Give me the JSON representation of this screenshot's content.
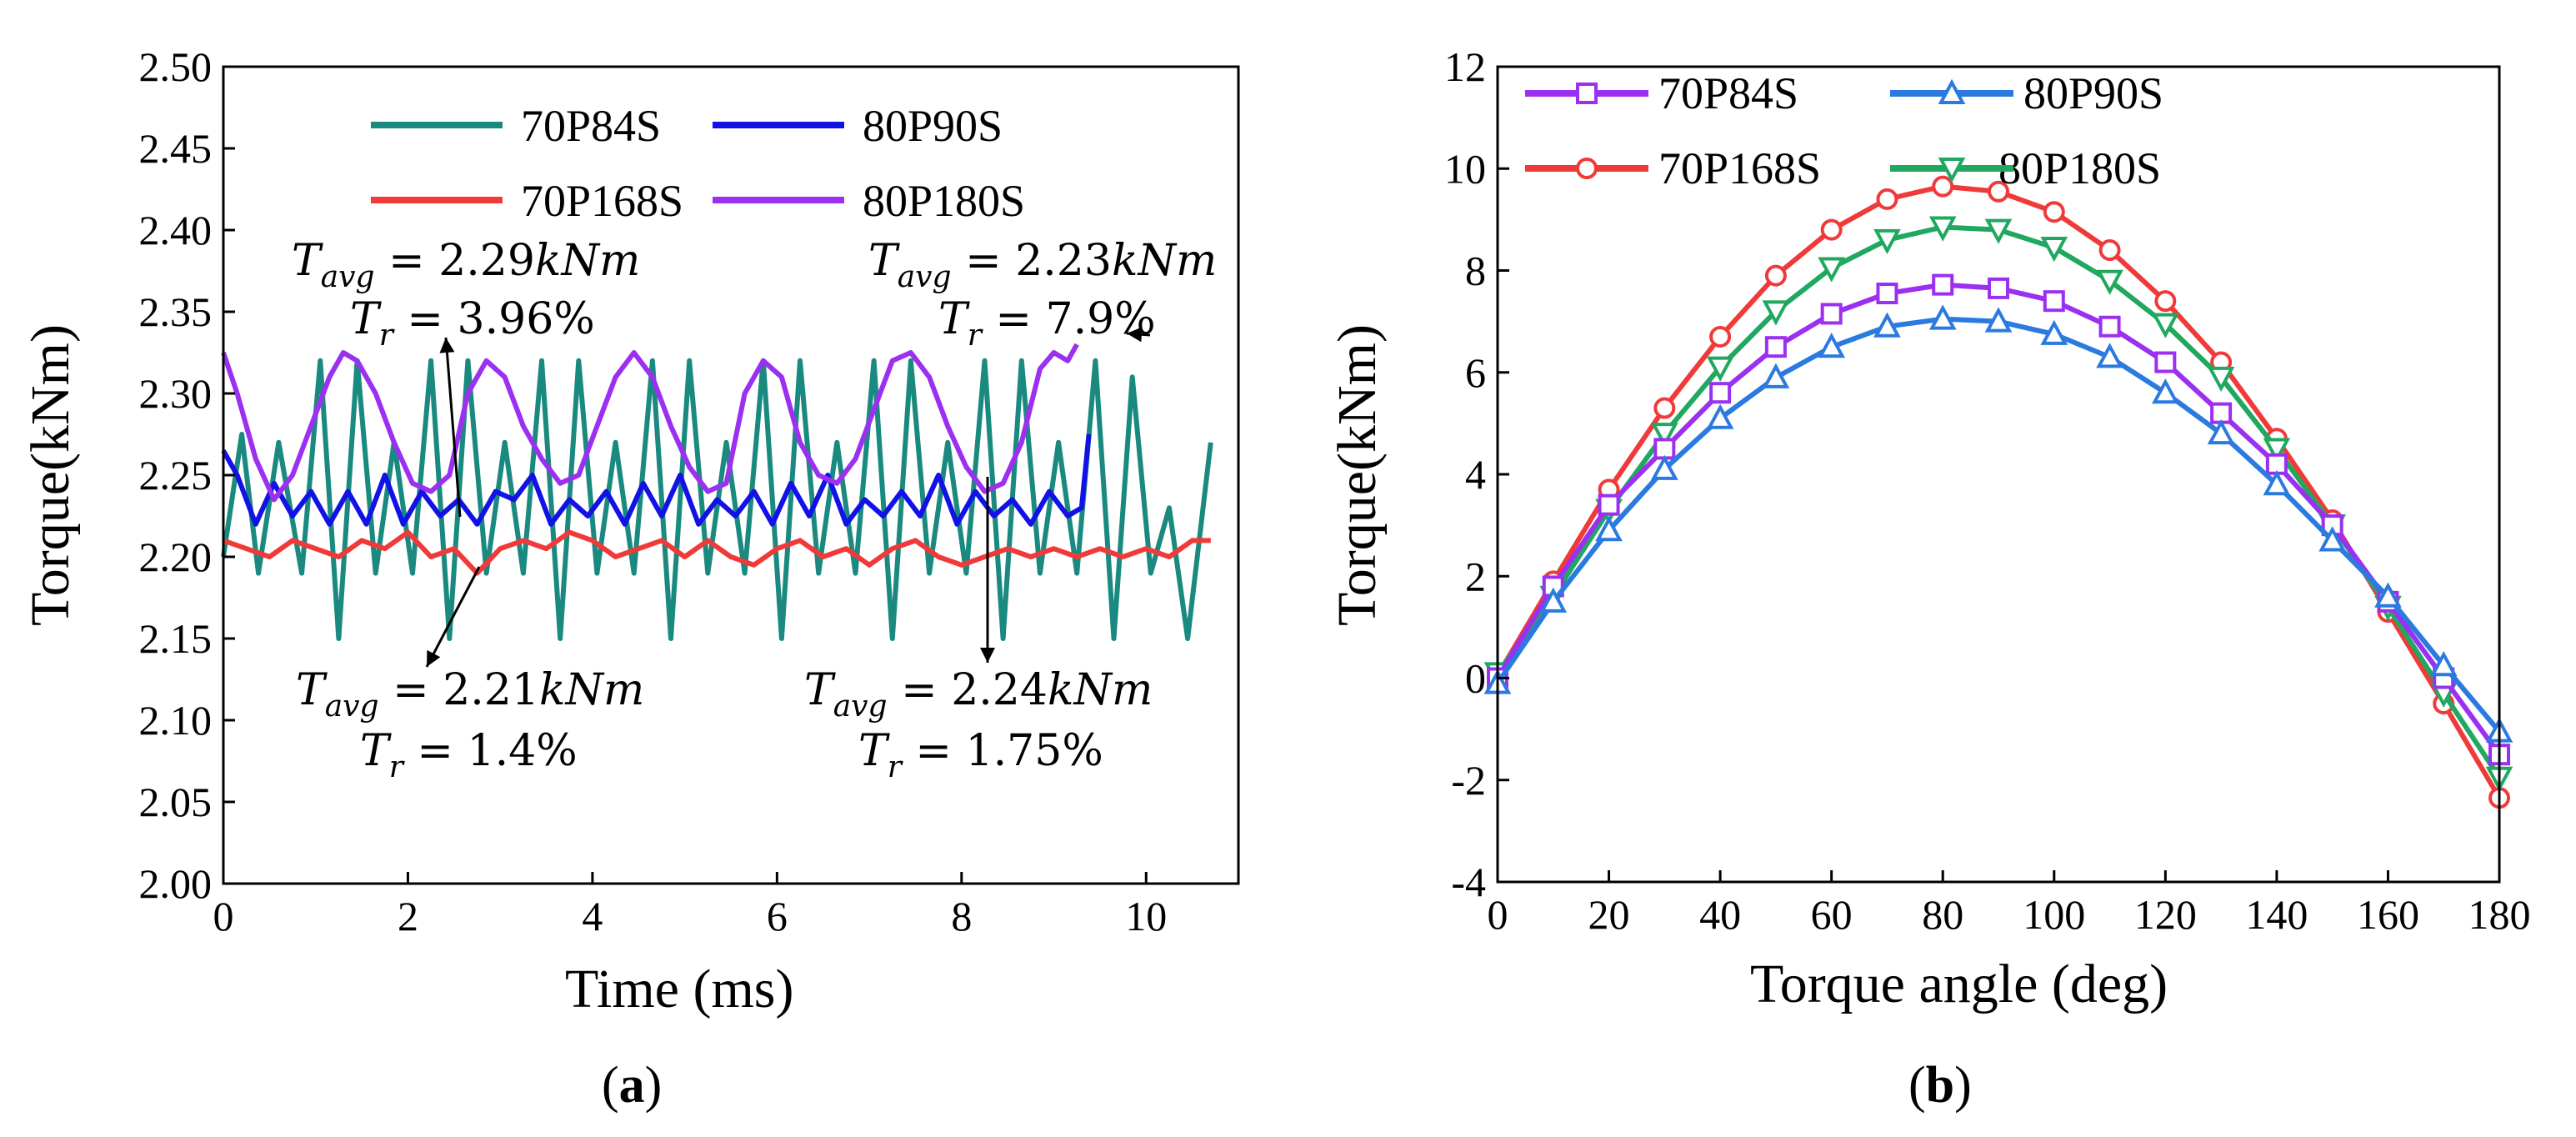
{
  "chart_data": [
    {
      "id": "a",
      "type": "line",
      "panel_label": "a",
      "xlabel": "Time (ms)",
      "ylabel": "Torque(kNm)",
      "xlim": [
        0,
        11
      ],
      "ylim": [
        2.0,
        2.5
      ],
      "xticks": [
        0,
        2,
        4,
        6,
        8,
        10
      ],
      "yticks": [
        "2.00",
        "2.05",
        "2.10",
        "2.15",
        "2.20",
        "2.25",
        "2.30",
        "2.35",
        "2.40",
        "2.45",
        "2.50"
      ],
      "legend_position": "top",
      "series": [
        {
          "name": "70P84S",
          "color": "#1a8a80",
          "x": [
            0,
            0.2,
            0.38,
            0.6,
            0.85,
            1.05,
            1.25,
            1.45,
            1.65,
            1.85,
            2.05,
            2.25,
            2.45,
            2.65,
            2.85,
            3.05,
            3.25,
            3.45,
            3.65,
            3.85,
            4.05,
            4.25,
            4.45,
            4.65,
            4.85,
            5.05,
            5.25,
            5.45,
            5.65,
            5.85,
            6.05,
            6.25,
            6.45,
            6.65,
            6.85,
            7.05,
            7.25,
            7.45,
            7.65,
            7.85,
            8.05,
            8.25,
            8.45,
            8.65,
            8.85,
            9.05,
            9.25,
            9.45,
            9.65,
            9.85,
            10.05,
            10.25,
            10.45,
            10.7
          ],
          "y": [
            2.2,
            2.275,
            2.19,
            2.27,
            2.19,
            2.32,
            2.15,
            2.32,
            2.19,
            2.27,
            2.19,
            2.32,
            2.15,
            2.32,
            2.19,
            2.27,
            2.19,
            2.32,
            2.15,
            2.32,
            2.19,
            2.27,
            2.19,
            2.32,
            2.15,
            2.32,
            2.19,
            2.27,
            2.19,
            2.32,
            2.15,
            2.32,
            2.19,
            2.27,
            2.19,
            2.32,
            2.15,
            2.32,
            2.19,
            2.27,
            2.19,
            2.32,
            2.15,
            2.32,
            2.19,
            2.27,
            2.19,
            2.32,
            2.15,
            2.31,
            2.19,
            2.23,
            2.15,
            2.27
          ]
        },
        {
          "name": "80P90S",
          "color": "#1212e6",
          "x": [
            0,
            0.15,
            0.35,
            0.55,
            0.75,
            0.95,
            1.15,
            1.35,
            1.55,
            1.75,
            1.95,
            2.15,
            2.35,
            2.55,
            2.75,
            2.95,
            3.15,
            3.35,
            3.55,
            3.75,
            3.95,
            4.15,
            4.35,
            4.55,
            4.75,
            4.95,
            5.15,
            5.35,
            5.55,
            5.75,
            5.95,
            6.15,
            6.35,
            6.55,
            6.75,
            6.95,
            7.15,
            7.35,
            7.55,
            7.75,
            7.95,
            8.15,
            8.35,
            8.55,
            8.75,
            8.95,
            9.15,
            9.3,
            9.38
          ],
          "y": [
            2.265,
            2.25,
            2.22,
            2.245,
            2.225,
            2.24,
            2.22,
            2.24,
            2.22,
            2.25,
            2.22,
            2.24,
            2.225,
            2.235,
            2.22,
            2.24,
            2.235,
            2.25,
            2.22,
            2.235,
            2.225,
            2.24,
            2.22,
            2.245,
            2.225,
            2.25,
            2.22,
            2.235,
            2.225,
            2.24,
            2.22,
            2.245,
            2.225,
            2.25,
            2.22,
            2.235,
            2.225,
            2.24,
            2.225,
            2.25,
            2.22,
            2.24,
            2.225,
            2.235,
            2.22,
            2.24,
            2.225,
            2.23,
            2.275
          ]
        },
        {
          "name": "70P168S",
          "color": "#f03a3a",
          "x": [
            0,
            0.25,
            0.5,
            0.75,
            1.0,
            1.25,
            1.5,
            1.75,
            2.0,
            2.25,
            2.5,
            2.75,
            3.0,
            3.25,
            3.5,
            3.75,
            4.0,
            4.25,
            4.5,
            4.75,
            5.0,
            5.25,
            5.5,
            5.75,
            6.0,
            6.25,
            6.5,
            6.75,
            7.0,
            7.25,
            7.5,
            7.75,
            8.0,
            8.25,
            8.5,
            8.75,
            9.0,
            9.25,
            9.5,
            9.75,
            10.0,
            10.25,
            10.5,
            10.7
          ],
          "y": [
            2.21,
            2.205,
            2.2,
            2.21,
            2.205,
            2.2,
            2.21,
            2.205,
            2.215,
            2.2,
            2.205,
            2.19,
            2.205,
            2.21,
            2.205,
            2.215,
            2.21,
            2.2,
            2.205,
            2.21,
            2.2,
            2.21,
            2.2,
            2.195,
            2.205,
            2.21,
            2.2,
            2.205,
            2.195,
            2.205,
            2.21,
            2.2,
            2.195,
            2.2,
            2.205,
            2.2,
            2.205,
            2.2,
            2.205,
            2.2,
            2.205,
            2.2,
            2.21,
            2.21
          ]
        },
        {
          "name": "80P180S",
          "color": "#9b30f0",
          "x": [
            0,
            0.15,
            0.35,
            0.55,
            0.75,
            0.95,
            1.15,
            1.3,
            1.45,
            1.65,
            1.85,
            2.05,
            2.25,
            2.45,
            2.65,
            2.85,
            3.05,
            3.25,
            3.45,
            3.65,
            3.85,
            4.05,
            4.25,
            4.45,
            4.65,
            4.85,
            5.05,
            5.25,
            5.45,
            5.65,
            5.85,
            6.05,
            6.25,
            6.45,
            6.65,
            6.85,
            7.05,
            7.25,
            7.45,
            7.65,
            7.85,
            8.05,
            8.25,
            8.45,
            8.65,
            8.85,
            9.0,
            9.15,
            9.25
          ],
          "y": [
            2.325,
            2.3,
            2.26,
            2.235,
            2.25,
            2.28,
            2.31,
            2.325,
            2.32,
            2.3,
            2.27,
            2.245,
            2.24,
            2.25,
            2.3,
            2.32,
            2.31,
            2.28,
            2.26,
            2.245,
            2.25,
            2.28,
            2.31,
            2.325,
            2.31,
            2.28,
            2.255,
            2.24,
            2.245,
            2.3,
            2.32,
            2.31,
            2.27,
            2.25,
            2.245,
            2.26,
            2.29,
            2.32,
            2.325,
            2.31,
            2.28,
            2.255,
            2.24,
            2.245,
            2.27,
            2.315,
            2.325,
            2.32,
            2.33
          ]
        }
      ],
      "annotations": [
        {
          "tavg": "2.29",
          "tr": "3.96%",
          "target": [
            2.55,
            2.255
          ]
        },
        {
          "tavg": "2.23",
          "tr": "7.9%",
          "target": [
            10.05,
            2.31
          ]
        },
        {
          "tavg": "2.21",
          "tr": "1.4%",
          "target": [
            2.2,
            2.195
          ]
        },
        {
          "tavg": "2.24",
          "tr": "1.75%",
          "target": [
            8.25,
            2.23
          ]
        }
      ]
    },
    {
      "id": "b",
      "type": "line",
      "panel_label": "b",
      "xlabel": "Torque angle (deg)",
      "ylabel": "Torque(kNm)",
      "xlim": [
        0,
        180
      ],
      "ylim": [
        -4,
        12
      ],
      "xticks": [
        0,
        20,
        40,
        60,
        80,
        100,
        120,
        140,
        160,
        180
      ],
      "yticks": [
        -4,
        -2,
        0,
        2,
        4,
        6,
        8,
        10,
        12
      ],
      "legend_position": "top-left",
      "x": [
        0,
        10,
        20,
        30,
        40,
        50,
        60,
        70,
        80,
        90,
        100,
        110,
        120,
        130,
        140,
        150,
        160,
        170,
        180
      ],
      "series": [
        {
          "name": "70P84S",
          "color": "#9b30f0",
          "marker": "square",
          "values": [
            0,
            1.8,
            3.4,
            4.5,
            5.6,
            6.5,
            7.15,
            7.55,
            7.72,
            7.65,
            7.4,
            6.9,
            6.2,
            5.2,
            4.2,
            3.0,
            1.5,
            0.0,
            -1.5
          ]
        },
        {
          "name": "80P90S",
          "color": "#2a7ae0",
          "marker": "triangle-up",
          "values": [
            -0.1,
            1.5,
            2.9,
            4.1,
            5.1,
            5.9,
            6.5,
            6.9,
            7.05,
            7.0,
            6.75,
            6.3,
            5.6,
            4.8,
            3.8,
            2.7,
            1.6,
            0.25,
            -1.05
          ]
        },
        {
          "name": "70P168S",
          "color": "#f03a3a",
          "marker": "circle",
          "values": [
            0.05,
            1.9,
            3.7,
            5.3,
            6.7,
            7.9,
            8.8,
            9.4,
            9.65,
            9.55,
            9.15,
            8.4,
            7.4,
            6.2,
            4.7,
            3.1,
            1.3,
            -0.5,
            -2.35
          ]
        },
        {
          "name": "80P180S",
          "color": "#20a860",
          "marker": "triangle-down",
          "values": [
            0.1,
            1.6,
            3.3,
            4.8,
            6.1,
            7.2,
            8.05,
            8.6,
            8.85,
            8.8,
            8.45,
            7.8,
            6.95,
            5.9,
            4.5,
            3.0,
            1.4,
            -0.3,
            -1.95
          ]
        }
      ]
    }
  ]
}
